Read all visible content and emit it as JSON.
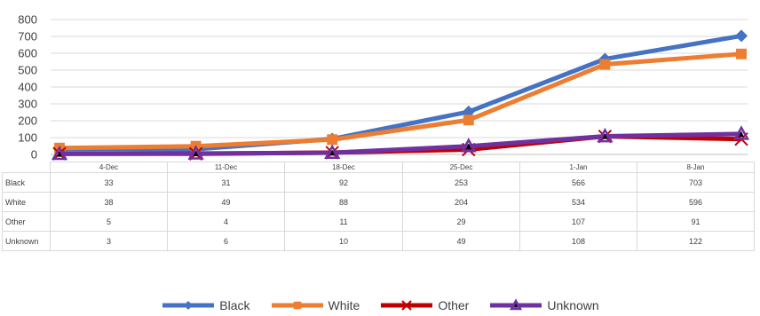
{
  "chart_data": {
    "type": "line",
    "categories": [
      "4-Dec",
      "11-Dec",
      "18-Dec",
      "25-Dec",
      "1-Jan",
      "8-Jan"
    ],
    "ylim": [
      0,
      800
    ],
    "yticks": [
      0,
      100,
      200,
      300,
      400,
      500,
      600,
      700,
      800
    ],
    "grid": true,
    "legend_position": "bottom",
    "series": [
      {
        "name": "Black",
        "values": [
          33,
          31,
          92,
          253,
          566,
          703
        ],
        "color": "#4472C4",
        "marker": "diamond"
      },
      {
        "name": "White",
        "values": [
          38,
          49,
          88,
          204,
          534,
          596
        ],
        "color": "#ED7D31",
        "marker": "square"
      },
      {
        "name": "Other",
        "values": [
          5,
          4,
          11,
          29,
          107,
          91
        ],
        "color": "#C00000",
        "marker": "x"
      },
      {
        "name": "Unknown",
        "values": [
          3,
          6,
          10,
          49,
          108,
          122
        ],
        "color": "#7030A0",
        "marker": "triangle"
      }
    ]
  }
}
